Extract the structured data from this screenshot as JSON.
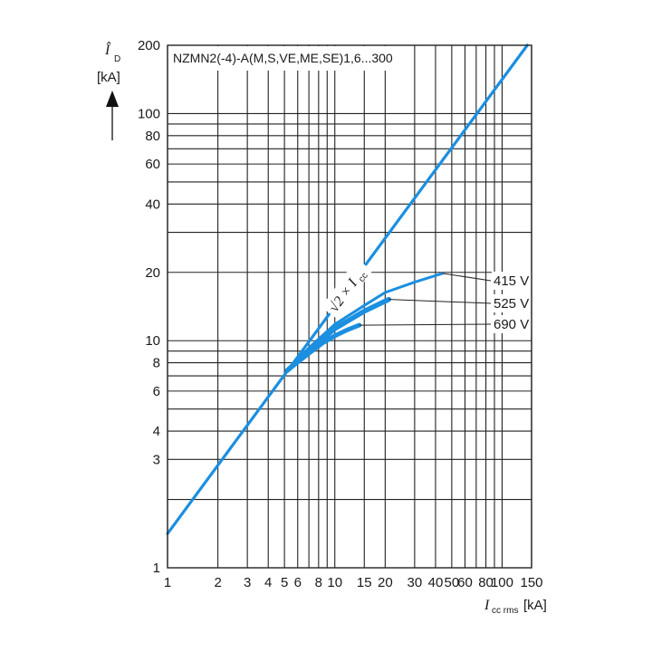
{
  "chart_data": {
    "type": "line",
    "title": "NZMN2(-4)-A(M,S,VE,ME,SE)1,6...300",
    "xaxis": {
      "scale": "log",
      "range": [
        1,
        150
      ],
      "label": "I",
      "label_sub": "cc rms",
      "unit": "[kA]",
      "ticks": [
        1,
        2,
        3,
        4,
        5,
        6,
        8,
        10,
        15,
        20,
        30,
        40,
        50,
        60,
        80,
        100,
        150
      ],
      "tick_labels": [
        "1",
        "2",
        "3",
        "4",
        "5",
        "6",
        "8",
        "10",
        "15",
        "20",
        "30",
        "40",
        "50",
        "60",
        "80",
        "100",
        "150"
      ]
    },
    "yaxis": {
      "scale": "log",
      "range": [
        1,
        200
      ],
      "label": "Î",
      "label_sub": "D",
      "unit": "[kA]",
      "ticks": [
        1,
        3,
        4,
        6,
        8,
        10,
        20,
        40,
        60,
        80,
        100,
        200
      ],
      "tick_labels": [
        "1",
        "3",
        "4",
        "6",
        "8",
        "10",
        "20",
        "40",
        "60",
        "80",
        "100",
        "200"
      ]
    },
    "grid": true,
    "reference_line": {
      "label": "√2 × I",
      "label_sub": "cc",
      "x": [
        1,
        141.4
      ],
      "y": [
        1.414,
        200
      ]
    },
    "series": [
      {
        "name": "415 V",
        "x": [
          5.2,
          7,
          10,
          15,
          20,
          30,
          44
        ],
        "y": [
          7.4,
          9.3,
          11.8,
          14.3,
          16.3,
          18.1,
          19.8
        ]
      },
      {
        "name": "525 V",
        "x": [
          5.2,
          7,
          10,
          15,
          21
        ],
        "y": [
          7.4,
          9.0,
          11.3,
          13.5,
          15.2
        ]
      },
      {
        "name": "690 V",
        "x": [
          5.2,
          7,
          8.5,
          10,
          12,
          14
        ],
        "y": [
          7.4,
          8.8,
          9.8,
          10.5,
          11.2,
          11.7
        ]
      }
    ]
  },
  "colors": {
    "curve": "#1b8fe0",
    "grid": "#222222",
    "text": "#1a1a1a"
  }
}
